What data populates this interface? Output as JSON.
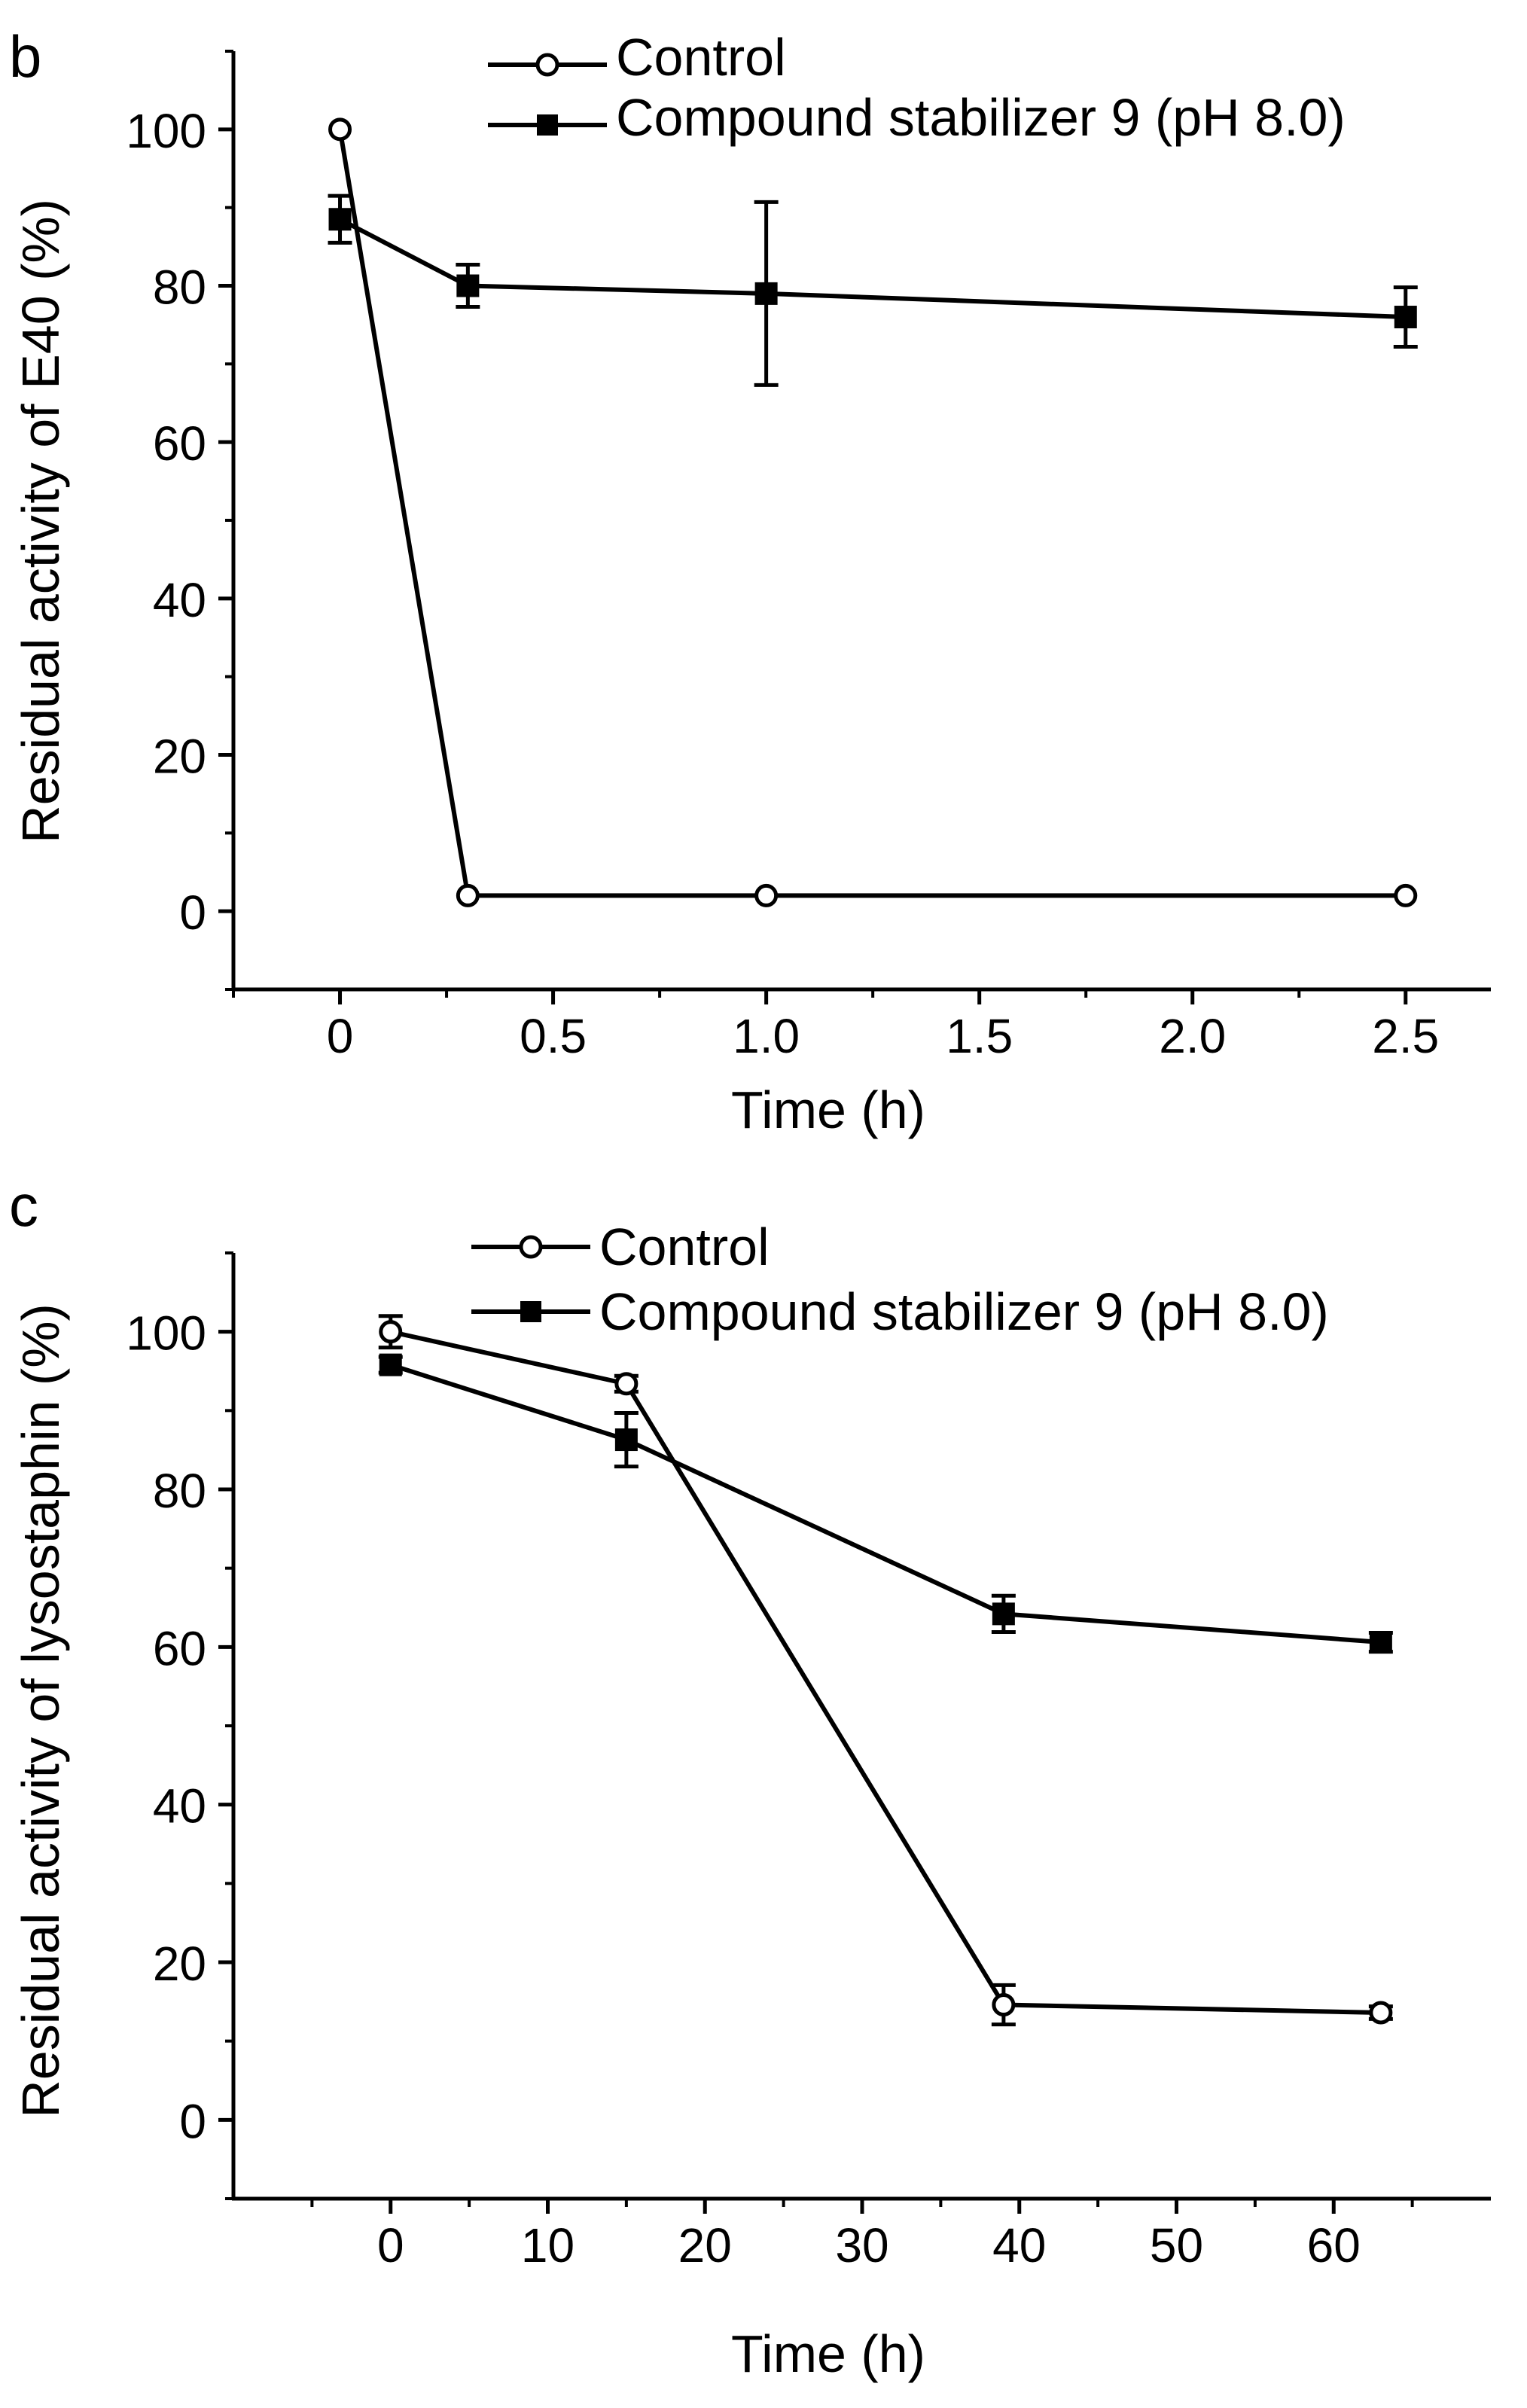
{
  "chart_data": [
    {
      "panel_label": "b",
      "type": "line",
      "xlabel": "Time (h)",
      "ylabel": "Residual activity of E40 (%)",
      "xlim": [
        -0.25,
        2.7
      ],
      "ylim": [
        -10,
        110
      ],
      "xticks": [
        0,
        0.5,
        1.0,
        1.5,
        2.0,
        2.5
      ],
      "xtick_labels": [
        "0",
        "0.5",
        "1.0",
        "1.5",
        "2.0",
        "2.5"
      ],
      "yticks": [
        0,
        20,
        40,
        60,
        80,
        100
      ],
      "ytick_labels": [
        "0",
        "20",
        "40",
        "60",
        "80",
        "100"
      ],
      "legend_position": "top-right",
      "series": [
        {
          "name": "Control",
          "marker": "open-circle",
          "x": [
            0,
            0.3,
            1.0,
            2.5
          ],
          "y": [
            100,
            2,
            2,
            2
          ],
          "err": [
            0,
            0,
            0,
            0
          ]
        },
        {
          "name": "Compound stabilizer 9 (pH 8.0)",
          "marker": "filled-square",
          "x": [
            0,
            0.3,
            1.0,
            2.5
          ],
          "y": [
            88.5,
            80,
            79,
            76
          ],
          "err": [
            3,
            2.7,
            11.7,
            3.8
          ]
        }
      ]
    },
    {
      "panel_label": "c",
      "type": "line",
      "xlabel": "Time (h)",
      "ylabel": "Residual activity of lysostaphin (%)",
      "xlim": [
        -10,
        70
      ],
      "ylim": [
        -10,
        110
      ],
      "xticks": [
        0,
        10,
        20,
        30,
        40,
        50,
        60
      ],
      "xtick_labels": [
        "0",
        "10",
        "20",
        "30",
        "40",
        "50",
        "60"
      ],
      "yticks": [
        0,
        20,
        40,
        60,
        80,
        100
      ],
      "ytick_labels": [
        "0",
        "20",
        "40",
        "60",
        "80",
        "100"
      ],
      "legend_position": "top-right",
      "series": [
        {
          "name": "Control",
          "marker": "open-circle",
          "x": [
            0,
            15,
            39,
            63
          ],
          "y": [
            100,
            93.4,
            14.6,
            13.6
          ],
          "err": [
            2,
            1,
            2.5,
            0.8
          ]
        },
        {
          "name": "Compound stabilizer 9 (pH 8.0)",
          "marker": "filled-square",
          "x": [
            0,
            15,
            39,
            63
          ],
          "y": [
            95.8,
            86.3,
            64.2,
            60.6
          ],
          "err": [
            1,
            3.4,
            2.3,
            1.2
          ]
        }
      ]
    }
  ]
}
